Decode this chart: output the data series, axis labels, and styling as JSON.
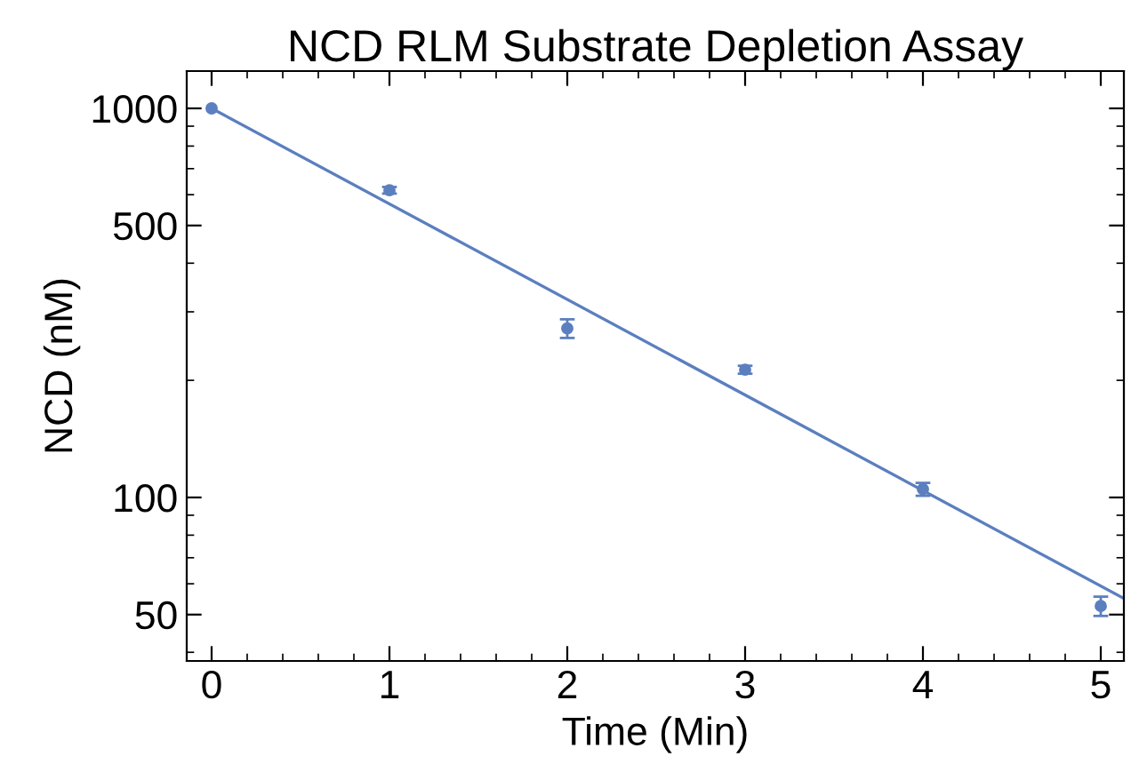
{
  "chart_data": {
    "type": "scatter",
    "title": "NCD RLM Substrate Depletion Assay",
    "xlabel": "Time (Min)",
    "ylabel": "NCD (nM)",
    "log": "y",
    "xlim": [
      -0.14,
      5.13
    ],
    "ylim": [
      38,
      1247
    ],
    "xticks": [
      0,
      1,
      2,
      3,
      4,
      5
    ],
    "yticks": [
      50,
      100,
      500,
      1000
    ],
    "grid": false,
    "series": [
      {
        "color": "#5b7fbf",
        "marker": "circle",
        "x": [
          0,
          1,
          2,
          3,
          4,
          5
        ],
        "values": [
          1000,
          616,
          272,
          213,
          105,
          52.6
        ],
        "errors": [
          null,
          12,
          15,
          5,
          4,
          3
        ]
      },
      {
        "type": "line",
        "color": "#5b7fbf",
        "marker": "none",
        "line_style": "solid",
        "x": [
          0,
          5.13
        ],
        "values": [
          1000,
          55
        ]
      }
    ]
  }
}
